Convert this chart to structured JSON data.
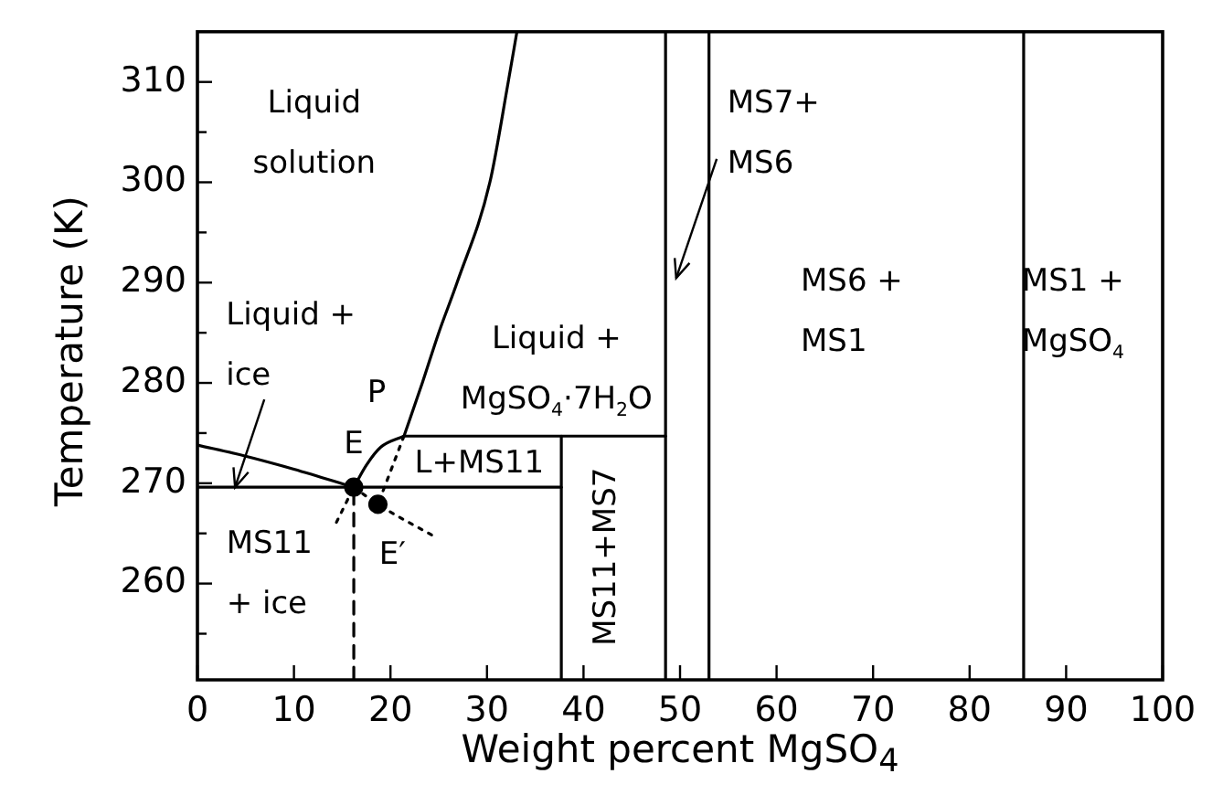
{
  "chart_data": {
    "type": "line",
    "xlabel": "Weight percent MgSO$_{4}$",
    "ylabel": "Temperature (K)",
    "xlim": [
      0,
      100
    ],
    "xticks": [
      0,
      10,
      20,
      30,
      40,
      50,
      60,
      70,
      80,
      90,
      100
    ],
    "ylim": [
      250.4,
      315
    ],
    "yticks": [
      {
        "value": 255,
        "label": null
      },
      260,
      {
        "value": 265,
        "label": null
      },
      270,
      {
        "value": 275,
        "label": null
      },
      280,
      {
        "value": 285,
        "label": null
      },
      290,
      {
        "value": 295,
        "label": null
      },
      300,
      {
        "value": 305,
        "label": null
      },
      310
    ],
    "grid": false,
    "legend": false,
    "line_style": "solid",
    "series": [
      {
        "type": "line",
        "color": "#000000",
        "x": [
          0,
          5,
          10,
          16.2
        ],
        "values": [
          273.8,
          272.7,
          271.4,
          269.6
        ]
      },
      {
        "type": "line",
        "color": "#000000",
        "x": [
          0,
          37.7
        ],
        "values": [
          269.6,
          269.6
        ]
      },
      {
        "type": "line",
        "color": "#000000",
        "x": [
          16.2,
          17.5,
          19,
          21.4
        ],
        "values": [
          269.6,
          271.8,
          273.6,
          274.7
        ]
      },
      {
        "type": "line",
        "color": "#000000",
        "x": [
          21.4,
          23.3,
          25,
          26.9,
          30.3,
          32.2,
          33.1
        ],
        "values": [
          274.7,
          280,
          285,
          290,
          300,
          310,
          315
        ]
      },
      {
        "type": "line",
        "color": "#000000",
        "x": [
          21.4,
          48.5
        ],
        "values": [
          274.7,
          274.7
        ]
      },
      {
        "type": "line",
        "color": "#000000",
        "x": [
          37.7,
          37.7
        ],
        "values": [
          250.4,
          274.7
        ]
      },
      {
        "type": "line",
        "color": "#000000",
        "line_style": "dashed",
        "x": [
          16.2,
          16.2
        ],
        "values": [
          250.4,
          269.6
        ]
      },
      {
        "type": "line",
        "color": "#000000",
        "line_style": "dotted",
        "x": [
          14.4,
          16.2
        ],
        "values": [
          266.1,
          269.6
        ]
      },
      {
        "type": "line",
        "color": "#000000",
        "line_style": "dotted",
        "x": [
          16.2,
          18.7,
          24.9
        ],
        "values": [
          269.6,
          267.9,
          264.5
        ]
      },
      {
        "type": "line",
        "color": "#000000",
        "line_style": "dotted",
        "x": [
          21.4,
          18.7
        ],
        "values": [
          274.7,
          267.9
        ]
      },
      {
        "type": "scatter",
        "color": "#000000",
        "marker": "circle",
        "x": [
          16.2,
          18.7
        ],
        "values": [
          269.6,
          267.9
        ]
      }
    ],
    "ref_lines": [
      {
        "axis": "x",
        "value": 48.5
      },
      {
        "axis": "x",
        "value": 53
      },
      {
        "axis": "x",
        "value": 85.6
      }
    ],
    "annotations": [
      "Liquid\nsolution",
      {
        "text": "Liquid +\nice",
        "x": 3.9,
        "y": 269.6
      },
      "Liquid +\nMgSO$_{4}$·7H$_{2}$O",
      {
        "text": "P",
        "x": 21.4,
        "y": 274.7
      },
      {
        "text": "E",
        "x": 16.2,
        "y": 269.6
      },
      {
        "text": "E′",
        "x": 18.7,
        "y": 267.9
      },
      "L+MS11",
      "MS11\n+ ice",
      "MS11+MS7",
      "MS7+\nMS6",
      "MS6 +\nMS1",
      "MS1 +\nMgSO$_{4}$"
    ]
  }
}
